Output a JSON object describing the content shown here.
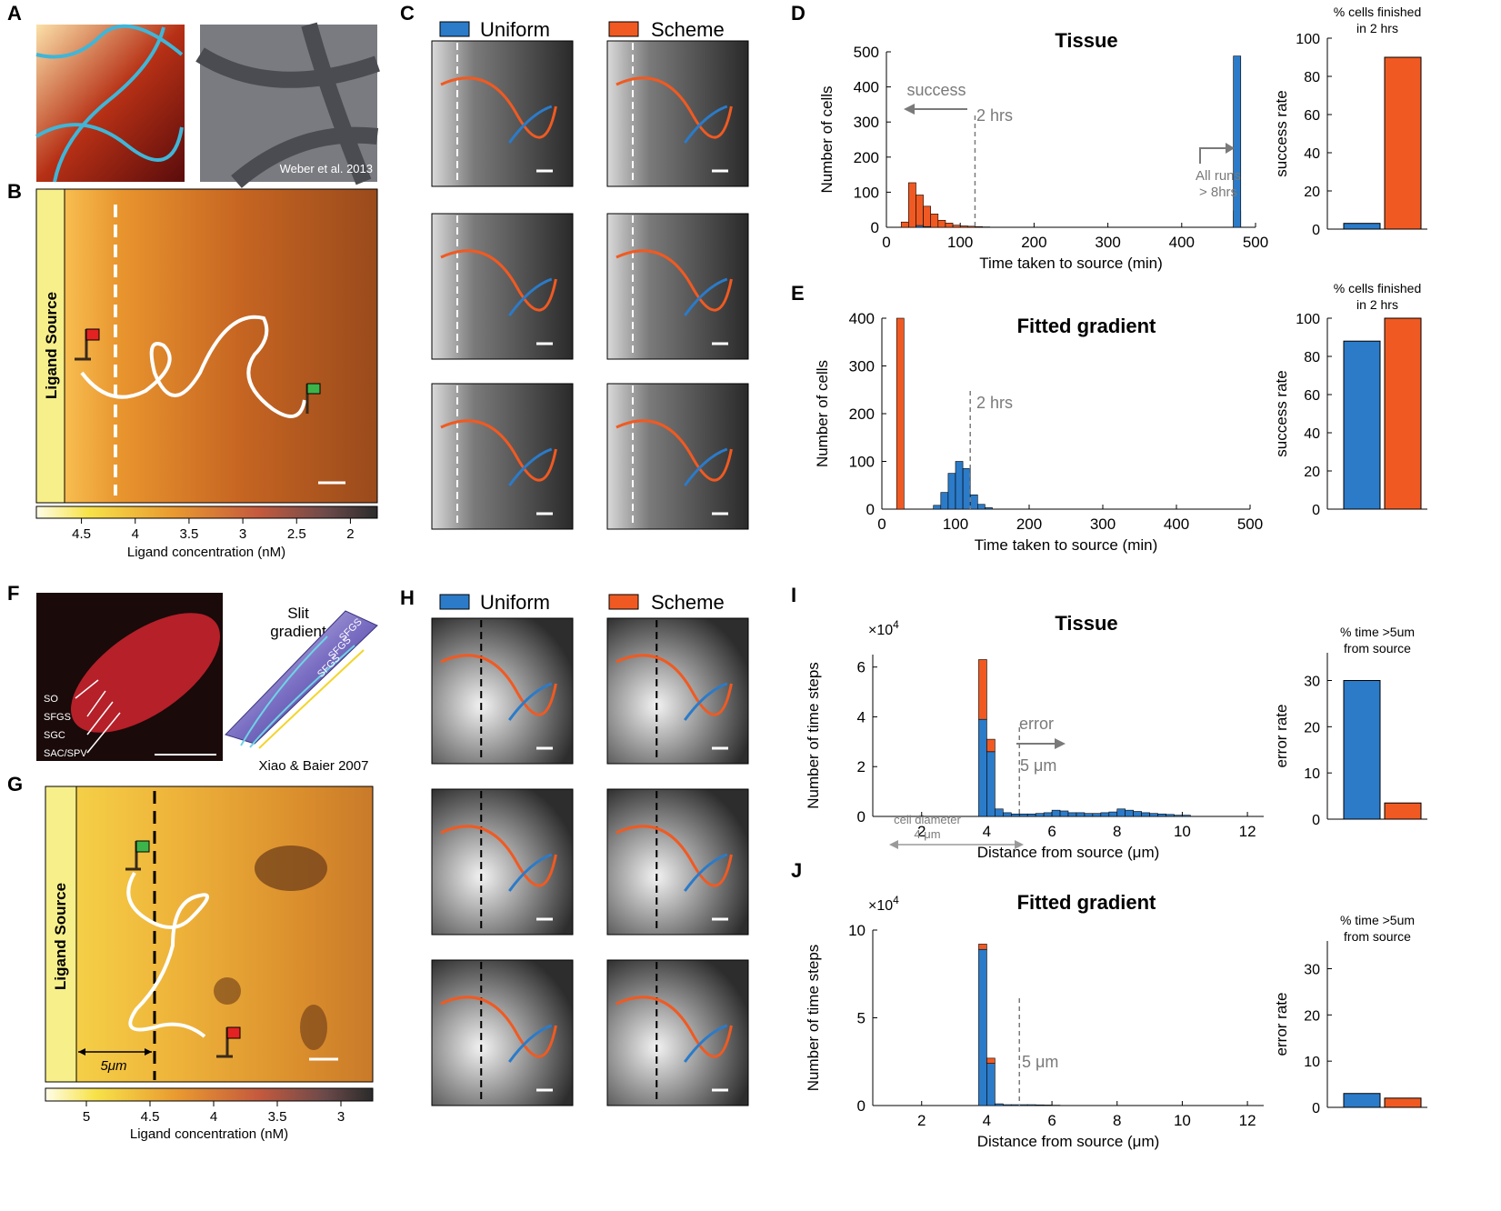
{
  "panel_labels": [
    "A",
    "B",
    "C",
    "D",
    "E",
    "F",
    "G",
    "H",
    "I",
    "J"
  ],
  "colors": {
    "uniform": "#2b7bc9",
    "scheme": "#f05a22",
    "grey_annot": "#7a7a7a"
  },
  "panel_a": {
    "credit": "Weber et al. 2013"
  },
  "panel_b": {
    "source_label": "Ligand Source",
    "colorbar_label": "Ligand concentration (nM)",
    "colorbar_ticks": [
      "4.5",
      "4",
      "3.5",
      "3",
      "2.5",
      "2"
    ]
  },
  "panel_c": {
    "legend": [
      "Uniform",
      "Scheme"
    ]
  },
  "panel_f": {
    "layers": [
      "SO",
      "SFGS",
      "SGC",
      "SAC/SPV"
    ],
    "title_line1": "Slit",
    "title_line2": "gradient",
    "band_labels": [
      "SFGS",
      "SFGS",
      "SFGS"
    ],
    "credit": "Xiao & Baier 2007"
  },
  "panel_g": {
    "source_label": "Ligand Source",
    "distance_label": "5μm",
    "colorbar_label": "Ligand concentration (nM)",
    "colorbar_ticks": [
      "5",
      "4.5",
      "4",
      "3.5",
      "3"
    ]
  },
  "panel_h": {
    "legend": [
      "Uniform",
      "Scheme"
    ]
  },
  "side_d": {
    "title_line1": "% cells finished",
    "title_line2": "in 2 hrs"
  },
  "side_i": {
    "title_line1": "% time >5um",
    "title_line2": "from source"
  },
  "annotations": {
    "d_success": "success",
    "d_2hrs": "2 hrs",
    "d_allruns1": "All runs",
    "d_allruns2": "> 8hrs",
    "e_2hrs": "2 hrs",
    "i_error": "error",
    "i_5um": "5 μm",
    "i_cell1": "cell diameter",
    "i_cell2": "4 μm",
    "j_5um": "5 μm",
    "exponent": "×10"
  },
  "chart_data": [
    {
      "id": "D",
      "type": "bar",
      "title": "Tissue",
      "xlabel": "Time taken to source (min)",
      "ylabel": "Number of cells",
      "xlim": [
        0,
        500
      ],
      "ylim": [
        0,
        500
      ],
      "xticks": [
        0,
        100,
        200,
        300,
        400,
        500
      ],
      "yticks": [
        0,
        100,
        200,
        300,
        400,
        500
      ],
      "bin_width": 10,
      "series": [
        {
          "name": "Scheme",
          "bins_start": [
            20,
            30,
            40,
            50,
            60,
            70,
            80,
            90,
            100,
            110,
            120,
            130,
            470
          ],
          "values": [
            15,
            127,
            92,
            60,
            38,
            20,
            12,
            6,
            4,
            3,
            2,
            1,
            47
          ]
        },
        {
          "name": "Uniform",
          "bins_start": [
            40,
            50,
            470
          ],
          "values": [
            5,
            2,
            488
          ]
        }
      ],
      "threshold_x": 120
    },
    {
      "id": "D_side",
      "type": "bar",
      "title": "% cells finished in 2 hrs",
      "ylabel": "success rate",
      "ylim": [
        0,
        100
      ],
      "yticks": [
        0,
        20,
        40,
        60,
        80,
        100
      ],
      "series": [
        {
          "name": "Uniform",
          "values": [
            3
          ]
        },
        {
          "name": "Scheme",
          "values": [
            90
          ]
        }
      ]
    },
    {
      "id": "E",
      "type": "bar",
      "title": "Fitted gradient",
      "xlabel": "Time taken to source (min)",
      "ylabel": "Number of cells",
      "xlim": [
        0,
        500
      ],
      "ylim": [
        0,
        400
      ],
      "xticks": [
        0,
        100,
        200,
        300,
        400,
        500
      ],
      "yticks": [
        0,
        100,
        200,
        300,
        400
      ],
      "bin_width": 10,
      "series": [
        {
          "name": "Scheme",
          "bins_start": [
            20
          ],
          "values": [
            400
          ]
        },
        {
          "name": "Uniform",
          "bins_start": [
            70,
            80,
            90,
            100,
            110,
            120,
            130,
            140
          ],
          "values": [
            8,
            35,
            75,
            100,
            85,
            30,
            10,
            3
          ]
        }
      ],
      "threshold_x": 120
    },
    {
      "id": "E_side",
      "type": "bar",
      "title": "% cells finished in 2 hrs",
      "ylabel": "success rate",
      "ylim": [
        0,
        100
      ],
      "yticks": [
        0,
        20,
        40,
        60,
        80,
        100
      ],
      "series": [
        {
          "name": "Uniform",
          "values": [
            88
          ]
        },
        {
          "name": "Scheme",
          "values": [
            100
          ]
        }
      ]
    },
    {
      "id": "I",
      "type": "bar",
      "title": "Tissue",
      "xlabel": "Distance from source (μm)",
      "ylabel": "Number of time steps",
      "y_exponent": "4",
      "xlim": [
        0.5,
        12.5
      ],
      "ylim": [
        0,
        6.5
      ],
      "xticks": [
        2,
        4,
        6,
        8,
        10,
        12
      ],
      "yticks": [
        0,
        2,
        4,
        6
      ],
      "bin_width": 0.25,
      "series": [
        {
          "name": "Uniform",
          "bins_start": [
            3.75,
            4.0,
            4.25,
            4.5,
            4.75,
            5.0,
            5.25,
            5.5,
            5.75,
            6.0,
            6.25,
            6.5,
            6.75,
            7.0,
            7.25,
            7.5,
            7.75,
            8.0,
            8.25,
            8.5,
            8.75,
            9.0,
            9.25,
            9.5,
            9.75,
            10.0
          ],
          "values": [
            3.9,
            2.6,
            0.3,
            0.15,
            0.1,
            0.1,
            0.1,
            0.12,
            0.15,
            0.25,
            0.22,
            0.15,
            0.15,
            0.12,
            0.12,
            0.15,
            0.18,
            0.3,
            0.25,
            0.2,
            0.15,
            0.12,
            0.1,
            0.08,
            0.05,
            0.05
          ]
        },
        {
          "name": "Scheme",
          "bins_start": [
            3.75,
            4.0
          ],
          "values": [
            2.4,
            0.5
          ]
        }
      ],
      "threshold_x": 5
    },
    {
      "id": "I_side",
      "type": "bar",
      "title": "% time >5um from source",
      "ylabel": "error rate",
      "ylim": [
        0,
        36
      ],
      "yticks": [
        0,
        10,
        20,
        30
      ],
      "series": [
        {
          "name": "Uniform",
          "values": [
            30
          ]
        },
        {
          "name": "Scheme",
          "values": [
            3.5
          ]
        }
      ]
    },
    {
      "id": "J",
      "type": "bar",
      "title": "Fitted gradient",
      "xlabel": "Distance from source (μm)",
      "ylabel": "Number of time steps",
      "y_exponent": "4",
      "xlim": [
        0.5,
        12.5
      ],
      "ylim": [
        0,
        10
      ],
      "xticks": [
        2,
        4,
        6,
        8,
        10,
        12
      ],
      "yticks": [
        0,
        5,
        10
      ],
      "bin_width": 0.25,
      "series": [
        {
          "name": "Uniform",
          "bins_start": [
            3.75,
            4.0,
            4.25,
            4.5,
            4.75,
            5.0,
            5.25,
            5.5,
            5.75,
            6.0
          ],
          "values": [
            8.9,
            2.4,
            0.1,
            0.05,
            0.05,
            0.05,
            0.05,
            0.04,
            0.03,
            0.02
          ]
        },
        {
          "name": "Scheme",
          "bins_start": [
            3.75,
            4.0
          ],
          "values": [
            0.3,
            0.3
          ]
        }
      ],
      "threshold_x": 5
    },
    {
      "id": "J_side",
      "type": "bar",
      "title": "% time >5um from source",
      "ylabel": "error rate",
      "ylim": [
        0,
        36
      ],
      "yticks": [
        0,
        10,
        20,
        30
      ],
      "series": [
        {
          "name": "Uniform",
          "values": [
            3
          ]
        },
        {
          "name": "Scheme",
          "values": [
            2
          ]
        }
      ]
    }
  ]
}
